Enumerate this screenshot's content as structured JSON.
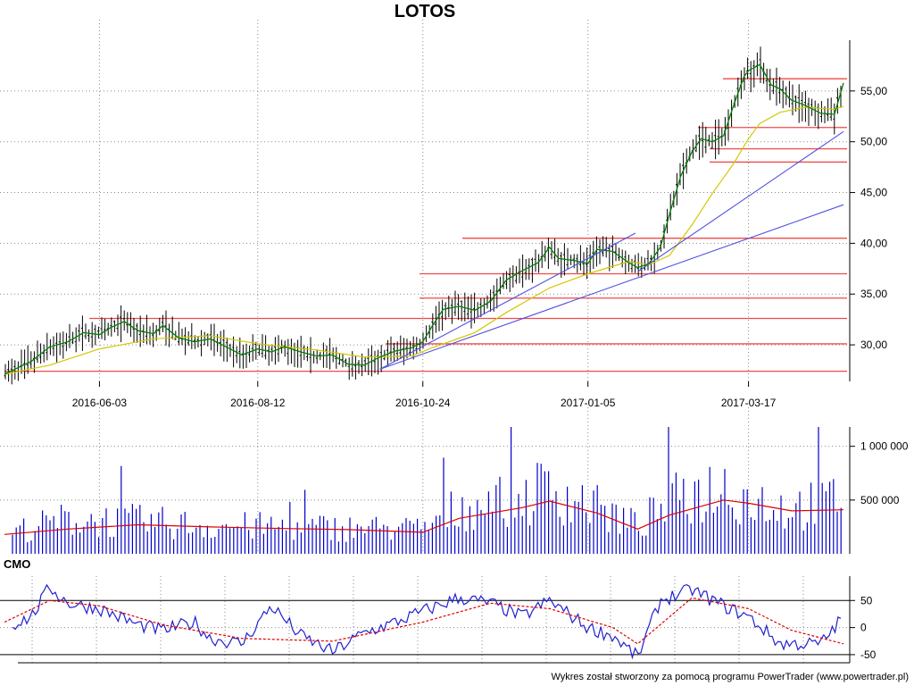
{
  "chart_data": [
    {
      "type": "candlestick",
      "title": "LOTOS",
      "x_tick_labels": [
        "2016-06-03",
        "2016-08-12",
        "2016-10-24",
        "2017-01-05",
        "2017-03-17"
      ],
      "y_tick_labels": [
        "30,00",
        "35,00",
        "40,00",
        "45,00",
        "50,00",
        "55,00"
      ],
      "y_ticks": [
        30,
        35,
        40,
        45,
        50,
        55
      ],
      "ylim": [
        26.4,
        60.0
      ],
      "x_range": [
        "2016-04-22",
        "2017-04-28"
      ],
      "grid": true,
      "close_points": [
        [
          "2016-04-22",
          27.1
        ],
        [
          "2016-05-04",
          28.4
        ],
        [
          "2016-05-12",
          29.8
        ],
        [
          "2016-05-20",
          30.3
        ],
        [
          "2016-05-27",
          31.2
        ],
        [
          "2016-06-03",
          31.0
        ],
        [
          "2016-06-08",
          31.7
        ],
        [
          "2016-06-14",
          32.3
        ],
        [
          "2016-06-20",
          31.4
        ],
        [
          "2016-06-27",
          31.1
        ],
        [
          "2016-07-01",
          31.9
        ],
        [
          "2016-07-08",
          30.7
        ],
        [
          "2016-07-15",
          30.3
        ],
        [
          "2016-07-22",
          30.6
        ],
        [
          "2016-07-29",
          29.8
        ],
        [
          "2016-08-05",
          29.0
        ],
        [
          "2016-08-12",
          29.6
        ],
        [
          "2016-08-18",
          29.3
        ],
        [
          "2016-08-24",
          29.8
        ],
        [
          "2016-08-31",
          29.3
        ],
        [
          "2016-09-07",
          28.9
        ],
        [
          "2016-09-14",
          29.0
        ],
        [
          "2016-09-21",
          28.1
        ],
        [
          "2016-09-28",
          28.0
        ],
        [
          "2016-10-05",
          28.8
        ],
        [
          "2016-10-12",
          29.4
        ],
        [
          "2016-10-19",
          29.7
        ],
        [
          "2016-10-24",
          30.3
        ],
        [
          "2016-10-28",
          31.8
        ],
        [
          "2016-11-02",
          33.5
        ],
        [
          "2016-11-09",
          33.8
        ],
        [
          "2016-11-16",
          33.4
        ],
        [
          "2016-11-23",
          34.3
        ],
        [
          "2016-11-30",
          36.4
        ],
        [
          "2016-12-07",
          37.3
        ],
        [
          "2016-12-14",
          38.1
        ],
        [
          "2016-12-19",
          39.6
        ],
        [
          "2016-12-23",
          38.5
        ],
        [
          "2016-12-30",
          38.3
        ],
        [
          "2017-01-05",
          38.0
        ],
        [
          "2017-01-09",
          39.4
        ],
        [
          "2017-01-16",
          39.2
        ],
        [
          "2017-01-23",
          38.1
        ],
        [
          "2017-01-27",
          37.6
        ],
        [
          "2017-02-01",
          38.0
        ],
        [
          "2017-02-06",
          39.6
        ],
        [
          "2017-02-10",
          42.8
        ],
        [
          "2017-02-15",
          46.6
        ],
        [
          "2017-02-20",
          49.0
        ],
        [
          "2017-02-24",
          50.3
        ],
        [
          "2017-03-01",
          50.0
        ],
        [
          "2017-03-06",
          50.6
        ],
        [
          "2017-03-10",
          53.3
        ],
        [
          "2017-03-15",
          56.4
        ],
        [
          "2017-03-17",
          57.0
        ],
        [
          "2017-03-22",
          57.6
        ],
        [
          "2017-03-27",
          55.6
        ],
        [
          "2017-03-31",
          55.2
        ],
        [
          "2017-04-05",
          54.1
        ],
        [
          "2017-04-11",
          53.6
        ],
        [
          "2017-04-18",
          52.8
        ],
        [
          "2017-04-24",
          52.7
        ],
        [
          "2017-04-28",
          55.8
        ]
      ],
      "moving_average_points": [
        [
          "2016-04-22",
          27.1
        ],
        [
          "2016-05-12",
          28.0
        ],
        [
          "2016-06-03",
          29.6
        ],
        [
          "2016-06-27",
          30.6
        ],
        [
          "2016-07-22",
          30.9
        ],
        [
          "2016-08-12",
          30.1
        ],
        [
          "2016-09-07",
          29.5
        ],
        [
          "2016-09-28",
          28.8
        ],
        [
          "2016-10-19",
          28.9
        ],
        [
          "2016-10-28",
          29.7
        ],
        [
          "2016-11-16",
          31.2
        ],
        [
          "2016-11-30",
          33.2
        ],
        [
          "2016-12-19",
          35.6
        ],
        [
          "2017-01-05",
          37.0
        ],
        [
          "2017-01-23",
          38.2
        ],
        [
          "2017-02-01",
          37.9
        ],
        [
          "2017-02-10",
          38.8
        ],
        [
          "2017-02-20",
          41.8
        ],
        [
          "2017-03-01",
          44.9
        ],
        [
          "2017-03-10",
          47.7
        ],
        [
          "2017-03-17",
          50.3
        ],
        [
          "2017-03-22",
          51.8
        ],
        [
          "2017-03-31",
          52.9
        ],
        [
          "2017-04-11",
          53.4
        ],
        [
          "2017-04-24",
          53.2
        ],
        [
          "2017-04-28",
          53.5
        ]
      ],
      "resistance_levels": [
        27.4,
        30.1,
        32.6,
        34.6,
        37.0,
        40.5,
        48.0,
        49.3,
        51.4,
        56.2
      ],
      "trend_lines": [
        {
          "from": [
            "2016-10-05",
            27.6
          ],
          "to": [
            "2017-01-26",
            41.0
          ]
        },
        {
          "from": [
            "2016-10-05",
            27.6
          ],
          "to": [
            "2017-04-28",
            43.8
          ]
        },
        {
          "from": [
            "2017-01-27",
            37.2
          ],
          "to": [
            "2017-04-28",
            51.0
          ]
        }
      ],
      "colors": {
        "bars": "#000000",
        "close_line": "#008000",
        "moving_average": "#d4c700",
        "resistance": "#f04a4a",
        "trend": "#5050e0"
      }
    },
    {
      "type": "bar",
      "series": "volume",
      "y_tick_labels": [
        "500 000",
        "1 000 000"
      ],
      "y_ticks": [
        500000,
        1000000
      ],
      "ylim": [
        0,
        1180000
      ],
      "volume_points": [
        [
          "2016-04-22",
          190000
        ],
        [
          "2016-05-20",
          320000
        ],
        [
          "2016-06-20",
          300000
        ],
        [
          "2016-07-22",
          260000
        ],
        [
          "2016-08-24",
          250000
        ],
        [
          "2016-09-21",
          240000
        ],
        [
          "2016-10-24",
          230000
        ],
        [
          "2016-11-09",
          430000
        ],
        [
          "2016-12-07",
          520000
        ],
        [
          "2016-12-19",
          620000
        ],
        [
          "2017-01-09",
          420000
        ],
        [
          "2017-01-27",
          260000
        ],
        [
          "2017-02-10",
          480000
        ],
        [
          "2017-03-06",
          640000
        ],
        [
          "2017-03-17",
          520000
        ],
        [
          "2017-04-05",
          420000
        ],
        [
          "2017-04-28",
          520000
        ]
      ],
      "volume_average_points": [
        [
          "2016-04-22",
          180000
        ],
        [
          "2016-05-20",
          230000
        ],
        [
          "2016-06-20",
          270000
        ],
        [
          "2016-07-22",
          250000
        ],
        [
          "2016-08-24",
          235000
        ],
        [
          "2016-09-21",
          225000
        ],
        [
          "2016-10-24",
          200000
        ],
        [
          "2016-11-09",
          330000
        ],
        [
          "2016-12-07",
          430000
        ],
        [
          "2016-12-19",
          490000
        ],
        [
          "2017-01-09",
          380000
        ],
        [
          "2017-01-27",
          230000
        ],
        [
          "2017-02-10",
          360000
        ],
        [
          "2017-03-06",
          500000
        ],
        [
          "2017-03-17",
          470000
        ],
        [
          "2017-04-05",
          400000
        ],
        [
          "2017-04-28",
          410000
        ]
      ],
      "colors": {
        "bars": "#0000cc",
        "average": "#e00000"
      }
    },
    {
      "type": "line",
      "title": "CMO",
      "y_tick_labels": [
        "-50",
        "0",
        "50"
      ],
      "y_ticks": [
        -50,
        0,
        50
      ],
      "ylim": [
        -65,
        95
      ],
      "reference_lines": [
        50,
        -50
      ],
      "cmo_points": [
        [
          "2016-04-22",
          0
        ],
        [
          "2016-05-04",
          20
        ],
        [
          "2016-05-12",
          75
        ],
        [
          "2016-05-20",
          45
        ],
        [
          "2016-06-03",
          35
        ],
        [
          "2016-06-20",
          5
        ],
        [
          "2016-07-01",
          -5
        ],
        [
          "2016-07-15",
          10
        ],
        [
          "2016-07-22",
          -20
        ],
        [
          "2016-08-05",
          -30
        ],
        [
          "2016-08-18",
          40
        ],
        [
          "2016-08-31",
          -15
        ],
        [
          "2016-09-14",
          -45
        ],
        [
          "2016-09-28",
          -10
        ],
        [
          "2016-10-12",
          10
        ],
        [
          "2016-10-24",
          30
        ],
        [
          "2016-11-09",
          55
        ],
        [
          "2016-11-23",
          45
        ],
        [
          "2016-12-07",
          20
        ],
        [
          "2016-12-19",
          50
        ],
        [
          "2017-01-05",
          0
        ],
        [
          "2017-01-16",
          -15
        ],
        [
          "2017-01-27",
          -55
        ],
        [
          "2017-02-06",
          50
        ],
        [
          "2017-02-20",
          70
        ],
        [
          "2017-03-06",
          40
        ],
        [
          "2017-03-17",
          20
        ],
        [
          "2017-03-31",
          -30
        ],
        [
          "2017-04-18",
          -30
        ],
        [
          "2017-04-28",
          20
        ]
      ],
      "cmo_signal_points": [
        [
          "2016-04-22",
          10
        ],
        [
          "2016-05-12",
          50
        ],
        [
          "2016-06-03",
          40
        ],
        [
          "2016-07-01",
          5
        ],
        [
          "2016-08-05",
          -20
        ],
        [
          "2016-09-14",
          -25
        ],
        [
          "2016-10-24",
          10
        ],
        [
          "2016-11-23",
          45
        ],
        [
          "2016-12-19",
          35
        ],
        [
          "2017-01-16",
          0
        ],
        [
          "2017-01-27",
          -30
        ],
        [
          "2017-02-20",
          55
        ],
        [
          "2017-03-17",
          35
        ],
        [
          "2017-04-05",
          -5
        ],
        [
          "2017-04-28",
          -30
        ]
      ],
      "colors": {
        "cmo": "#2020d0",
        "signal": "#e00000",
        "reference": "#000000"
      }
    }
  ],
  "footer": "Wykres został stworzony za pomocą programu PowerTrader (www.powertrader.pl)"
}
